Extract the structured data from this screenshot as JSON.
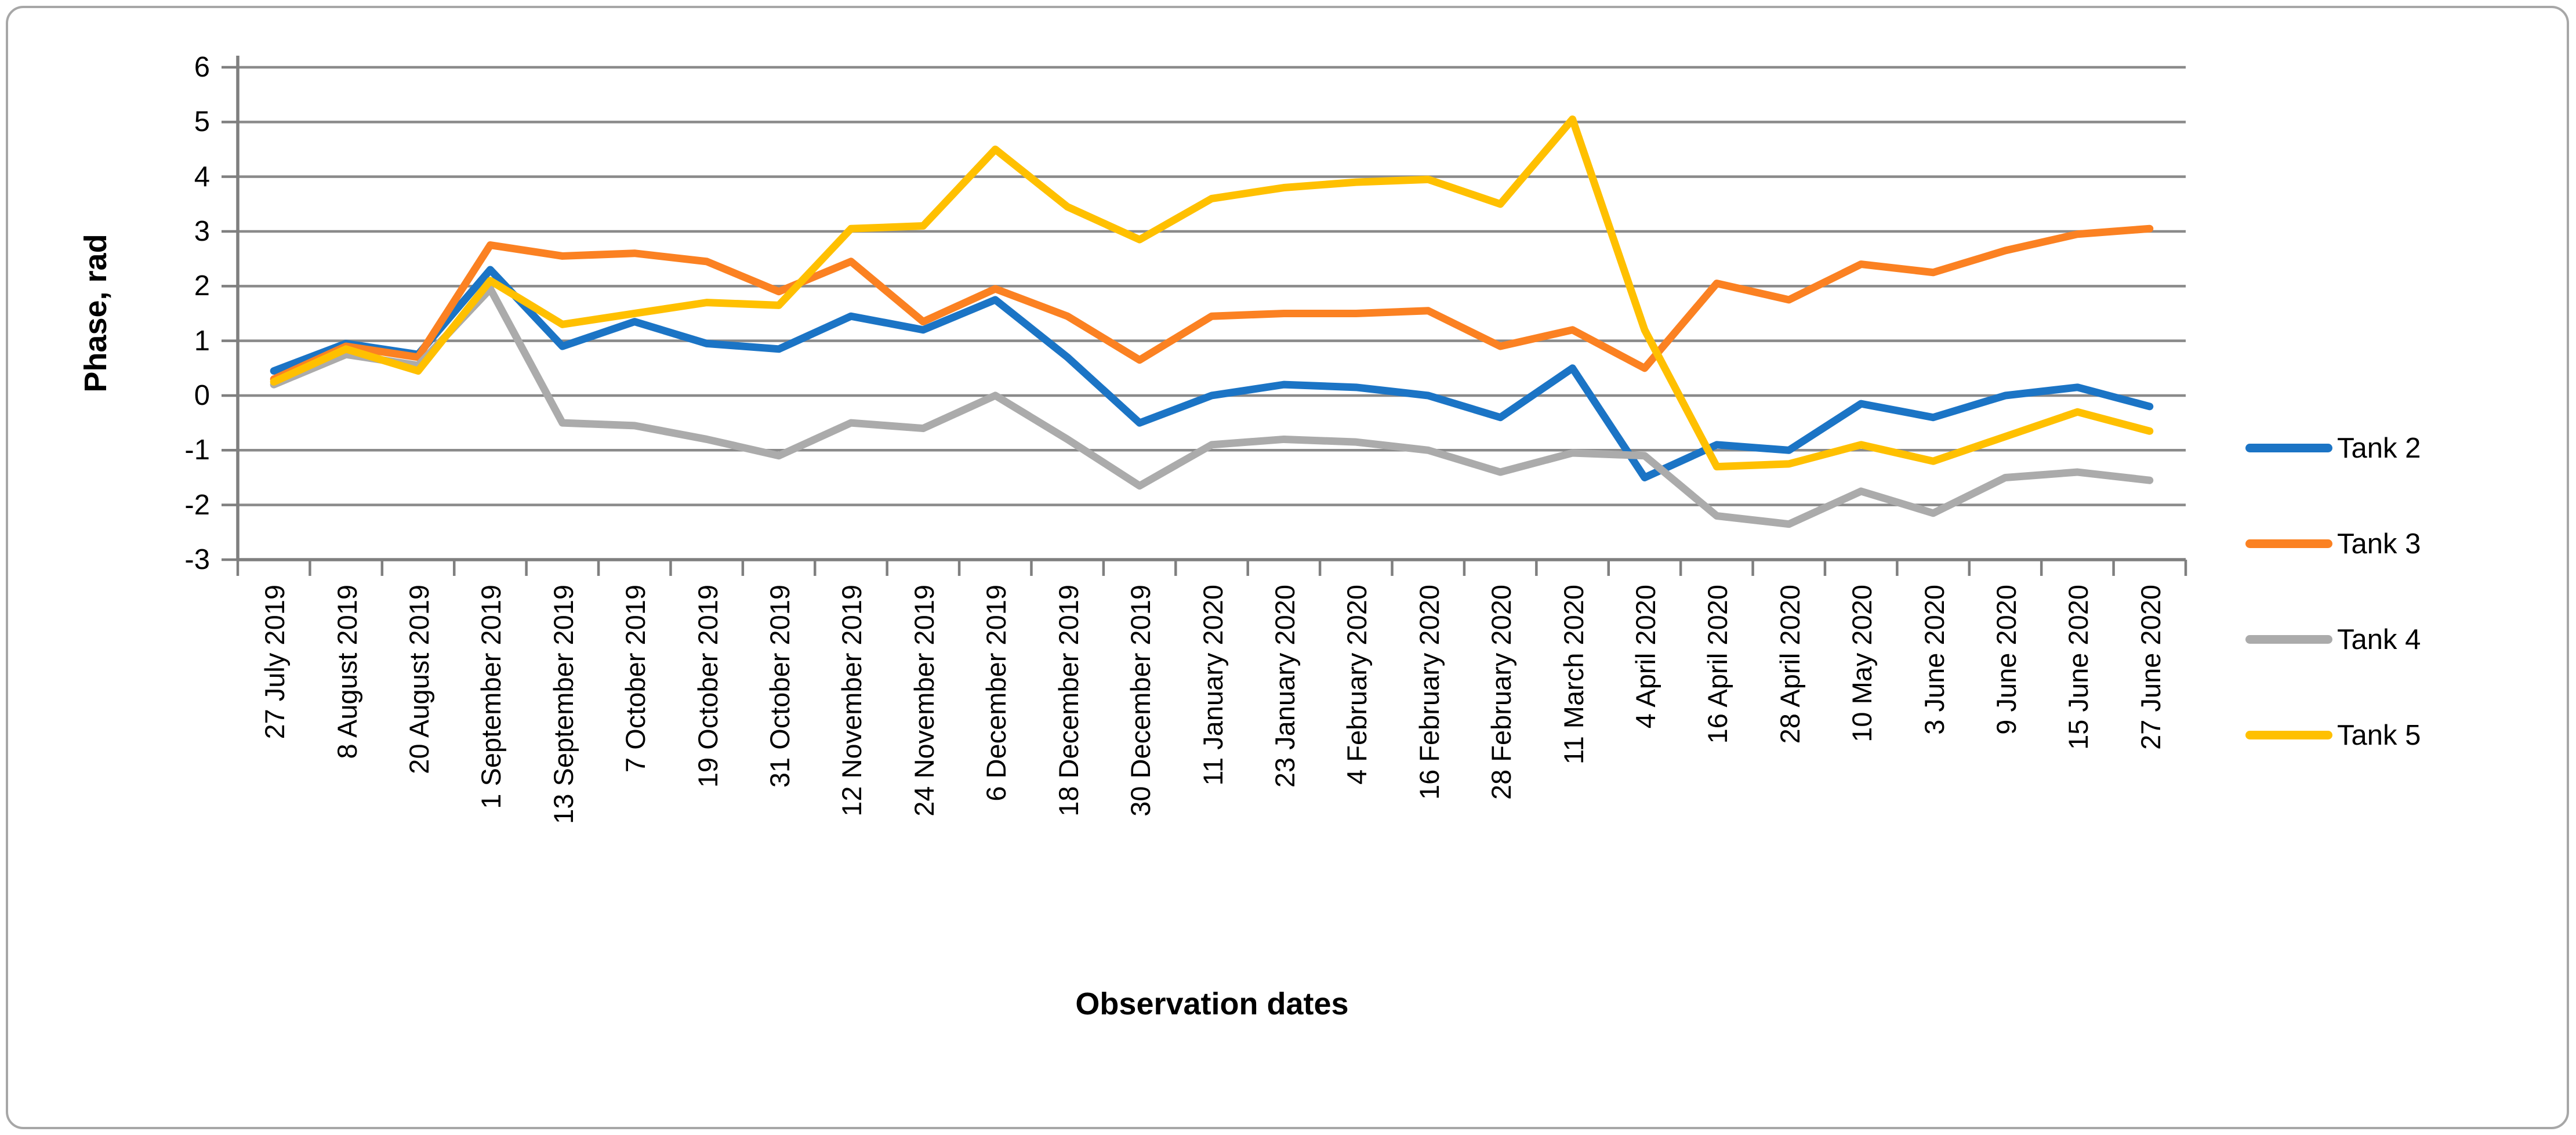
{
  "chart_data": {
    "type": "line",
    "title": "",
    "xlabel": "Observation dates",
    "ylabel": "Phase, rad",
    "ylim": [
      -3,
      6
    ],
    "y_ticks": [
      "6",
      "5",
      "4",
      "3",
      "2",
      "1",
      "0",
      "-1",
      "-2",
      "-3"
    ],
    "grid": true,
    "legend_position": "right",
    "categories": [
      "27 July 2019",
      "8 August 2019",
      "20 August 2019",
      "1 September 2019",
      "13 September 2019",
      "7 October 2019",
      "19 October 2019",
      "31 October 2019",
      "12 November 2019",
      "24 November 2019",
      "6 December 2019",
      "18 December 2019",
      "30 December 2019",
      "11 January 2020",
      "23 January 2020",
      "4 February 2020",
      "16 February 2020",
      "28 February 2020",
      "11 March 2020",
      "4 April 2020",
      "16 April 2020",
      "28 April 2020",
      "10 May 2020",
      "3 June 2020",
      "9 June 2020",
      "15 June 2020",
      "27 June 2020"
    ],
    "series": [
      {
        "name": "Tank 2",
        "color": "#1b74c5",
        "values": [
          0.45,
          0.95,
          0.75,
          2.3,
          0.9,
          1.35,
          0.95,
          0.85,
          1.45,
          1.2,
          1.75,
          0.7,
          -0.5,
          0.0,
          0.2,
          0.15,
          0.0,
          -0.4,
          0.5,
          -1.5,
          -0.9,
          -1.0,
          -0.15,
          -0.4,
          0.0,
          0.15,
          -0.2
        ]
      },
      {
        "name": "Tank 3",
        "color": "#fb8122",
        "values": [
          0.3,
          0.9,
          0.7,
          2.75,
          2.55,
          2.6,
          2.45,
          1.9,
          2.45,
          1.35,
          1.95,
          1.45,
          0.65,
          1.45,
          1.5,
          1.5,
          1.55,
          0.9,
          1.2,
          0.5,
          2.05,
          1.75,
          2.4,
          2.25,
          2.65,
          2.95,
          3.05
        ]
      },
      {
        "name": "Tank 4",
        "color": "#ababab",
        "values": [
          0.2,
          0.75,
          0.55,
          1.95,
          -0.5,
          -0.55,
          -0.8,
          -1.1,
          -0.5,
          -0.6,
          0.0,
          -0.8,
          -1.65,
          -0.9,
          -0.8,
          -0.85,
          -1.0,
          -1.4,
          -1.05,
          -1.1,
          -2.2,
          -2.35,
          -1.75,
          -2.15,
          -1.5,
          -1.4,
          -1.55
        ]
      },
      {
        "name": "Tank 5",
        "color": "#ffc000",
        "values": [
          0.25,
          0.85,
          0.45,
          2.1,
          1.3,
          1.5,
          1.7,
          1.65,
          3.05,
          3.1,
          4.5,
          3.45,
          2.85,
          3.6,
          3.8,
          3.9,
          3.95,
          3.5,
          5.05,
          1.2,
          -1.3,
          -1.25,
          -0.9,
          -1.2,
          -0.75,
          -0.3,
          -0.65
        ]
      }
    ],
    "colors": {
      "gridline": "#8a8a8a",
      "axis": "#7f7f7f",
      "border": "#a7a7a7",
      "text": "#000000"
    }
  }
}
